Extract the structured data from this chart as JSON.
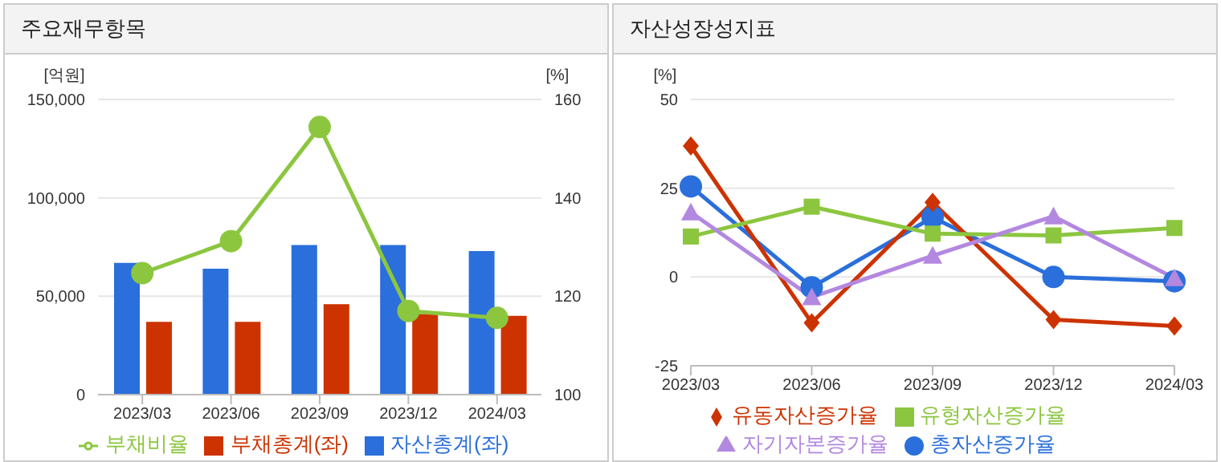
{
  "chart_data": [
    {
      "type": "bar",
      "title": "주요재무항목",
      "ylabel": "[억원]",
      "y2label": "[%]",
      "categories": [
        "2023/03",
        "2023/06",
        "2023/09",
        "2023/12",
        "2024/03"
      ],
      "series": [
        {
          "name": "자산총계(좌)",
          "color": "#2a6fdb",
          "values": [
            67000,
            64000,
            76000,
            76000,
            73000
          ]
        },
        {
          "name": "부채총계(좌)",
          "color": "#cc3300",
          "values": [
            37000,
            37000,
            46000,
            41000,
            40000
          ]
        },
        {
          "name": "부채비율",
          "type": "line",
          "axis": "y2",
          "marker": "circle",
          "color": "#8cc63f",
          "values": [
            124.7,
            131.2,
            154.4,
            117.0,
            115.6
          ]
        }
      ],
      "ylim": [
        0,
        150000
      ],
      "yticks": [
        0,
        {
          "value": 50000,
          "label": "50,000"
        },
        {
          "value": 100000,
          "label": "100,000"
        },
        {
          "value": 150000,
          "label": "150,000"
        }
      ],
      "y2lim": [
        100,
        160
      ],
      "y2ticks": [
        100,
        120,
        140,
        160
      ],
      "grid": "y",
      "legend": "bottom"
    },
    {
      "type": "line",
      "title": "자산성장성지표",
      "ylabel": "[%]",
      "categories": [
        "2023/03",
        "2023/06",
        "2023/09",
        "2023/12",
        "2024/03"
      ],
      "series": [
        {
          "name": "총자산증가율",
          "marker": "circle",
          "color": "#2a6fdb",
          "values": [
            25.5,
            -2.9,
            16.8,
            0,
            -1.2
          ]
        },
        {
          "name": "유동자산증가율",
          "marker": "diamond",
          "color": "#cc3300",
          "values": [
            36.9,
            -12.9,
            21,
            -12,
            -13.8
          ]
        },
        {
          "name": "유형자산증가율",
          "marker": "square",
          "color": "#8cc63f",
          "values": [
            11.4,
            19.8,
            12.2,
            11.7,
            13.8
          ]
        },
        {
          "name": "자기자본증가율",
          "marker": "triangle",
          "color": "#b388e0",
          "values": [
            18.2,
            -5.7,
            6,
            17.1,
            -0.3
          ]
        }
      ],
      "ylim": [
        -25,
        50
      ],
      "yticks": [
        -25,
        0,
        25,
        50
      ],
      "grid": "y",
      "legend": "bottom"
    }
  ]
}
